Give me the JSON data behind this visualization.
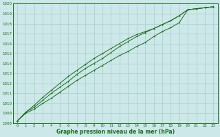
{
  "xlabel": "Graphe pression niveau de la mer (hPa)",
  "x": [
    0,
    1,
    2,
    3,
    4,
    5,
    6,
    7,
    8,
    9,
    10,
    11,
    12,
    13,
    14,
    15,
    16,
    17,
    18,
    19,
    20,
    21,
    22,
    23
  ],
  "line1": [
    1008.2,
    1009.0,
    1009.4,
    1010.0,
    1010.5,
    1011.1,
    1011.7,
    1012.3,
    1012.8,
    1013.3,
    1013.8,
    1014.3,
    1014.8,
    1015.2,
    1015.7,
    1016.1,
    1016.7,
    1017.2,
    1017.6,
    1018.1,
    1019.4,
    1019.5,
    1019.6,
    1019.7
  ],
  "line2": [
    1008.2,
    1009.1,
    1009.6,
    1010.3,
    1011.0,
    1011.6,
    1012.2,
    1012.9,
    1013.5,
    1014.0,
    1014.5,
    1015.1,
    1015.7,
    1016.2,
    1016.7,
    1017.1,
    1017.5,
    1017.9,
    1018.3,
    1018.8,
    1019.4,
    1019.5,
    1019.6,
    1019.7
  ],
  "line3": [
    1008.2,
    1009.1,
    1009.8,
    1010.6,
    1011.3,
    1012.0,
    1012.7,
    1013.3,
    1013.9,
    1014.5,
    1015.0,
    1015.5,
    1016.0,
    1016.5,
    1016.9,
    1017.2,
    1017.5,
    1017.9,
    1018.3,
    1018.8,
    1019.4,
    1019.5,
    1019.6,
    1019.7
  ],
  "bg_color": "#cce8e8",
  "line_color": "#1a6b1a",
  "grid_color": "#aacccc",
  "ylim": [
    1008,
    1020
  ],
  "xlim_min": -0.5,
  "xlim_max": 23.5,
  "yticks": [
    1008,
    1009,
    1010,
    1011,
    1012,
    1013,
    1014,
    1015,
    1016,
    1017,
    1018,
    1019,
    1020
  ],
  "xticks": [
    0,
    1,
    2,
    3,
    4,
    5,
    6,
    7,
    8,
    9,
    10,
    11,
    12,
    13,
    14,
    15,
    16,
    17,
    18,
    19,
    20,
    21,
    22,
    23
  ],
  "tick_fontsize": 4.0,
  "xlabel_fontsize": 5.5,
  "marker_size": 1.8,
  "line_width": 0.7
}
